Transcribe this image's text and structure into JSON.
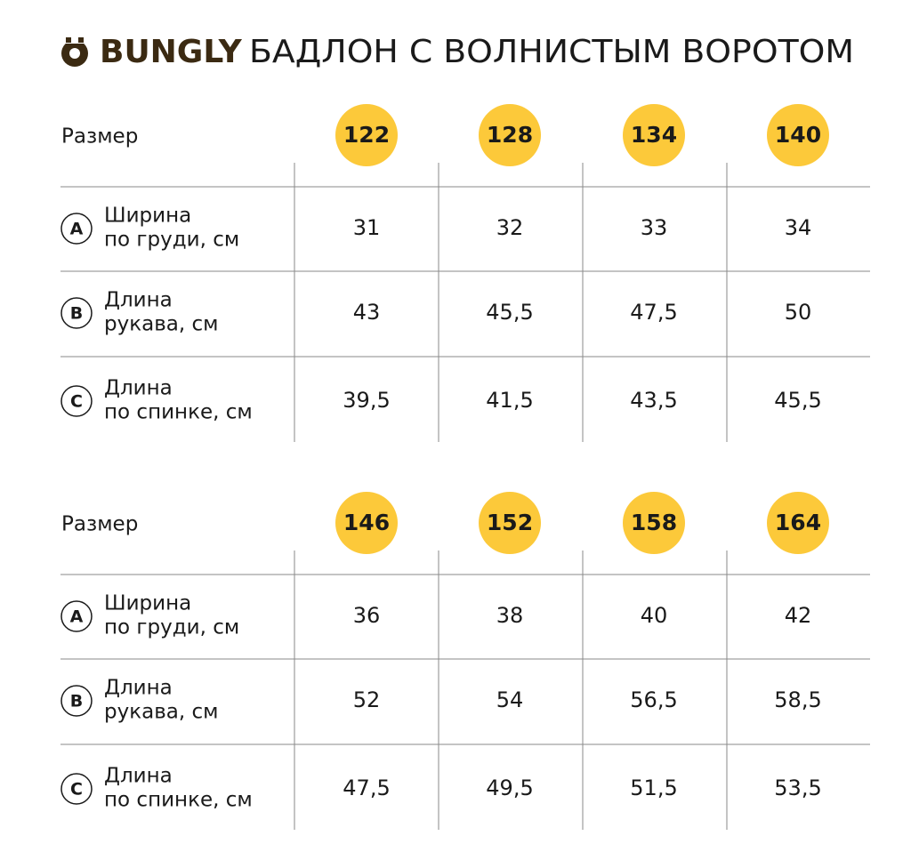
{
  "header": {
    "brand": "BUNGLY",
    "title": "БАДЛОН С ВОЛНИСТЫМ ВОРОТОМ"
  },
  "tables": [
    {
      "size_label": "Размер",
      "sizes": [
        "122",
        "128",
        "134",
        "140"
      ],
      "rows": [
        {
          "marker": "A",
          "label": [
            "Ширина",
            "по груди, см"
          ],
          "values": [
            "31",
            "32",
            "33",
            "34"
          ]
        },
        {
          "marker": "B",
          "label": [
            "Длина",
            "рукава, см"
          ],
          "values": [
            "43",
            "45,5",
            "47,5",
            "50"
          ]
        },
        {
          "marker": "C",
          "label": [
            "Длина",
            "по спинке, см"
          ],
          "values": [
            "39,5",
            "41,5",
            "43,5",
            "45,5"
          ]
        }
      ]
    },
    {
      "size_label": "Размер",
      "sizes": [
        "146",
        "152",
        "158",
        "164"
      ],
      "rows": [
        {
          "marker": "A",
          "label": [
            "Ширина",
            "по груди, см"
          ],
          "values": [
            "36",
            "38",
            "40",
            "42"
          ]
        },
        {
          "marker": "B",
          "label": [
            "Длина",
            "рукава, см"
          ],
          "values": [
            "52",
            "54",
            "56,5",
            "58,5"
          ]
        },
        {
          "marker": "C",
          "label": [
            "Длина",
            "по спинке, см"
          ],
          "values": [
            "47,5",
            "49,5",
            "51,5",
            "53,5"
          ]
        }
      ]
    }
  ]
}
